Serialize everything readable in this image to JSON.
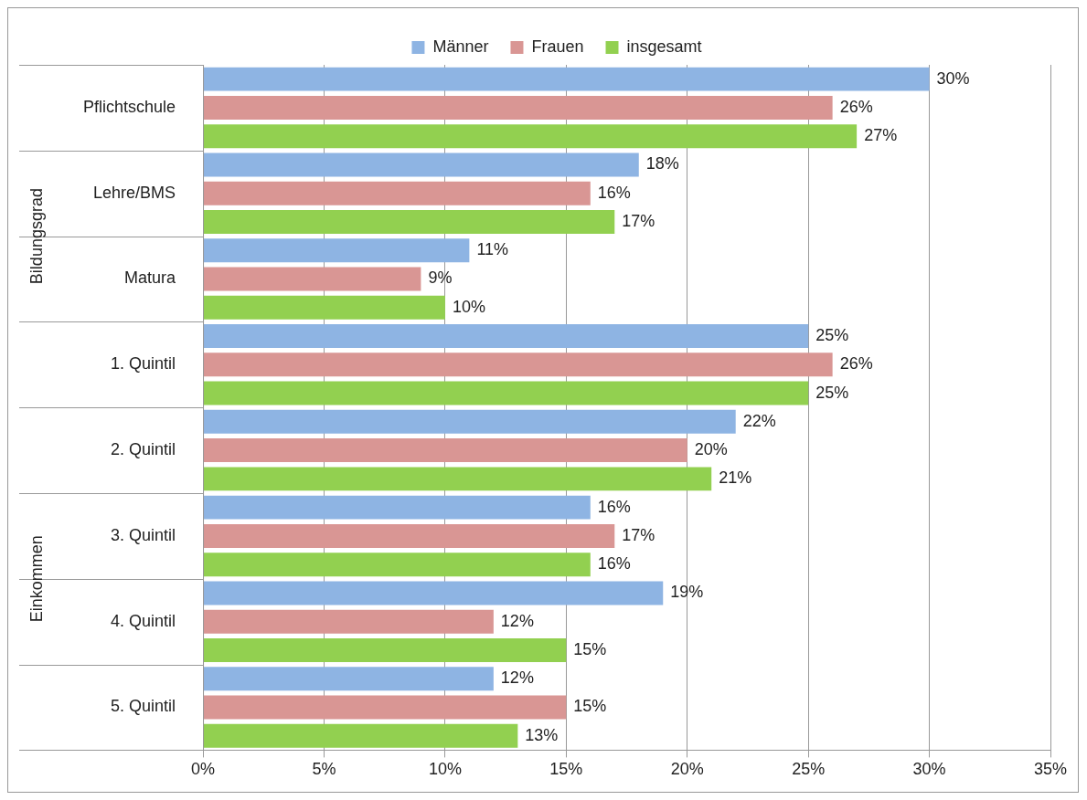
{
  "chart_data": {
    "type": "bar",
    "orientation": "horizontal",
    "categories": [
      "Pflichtschule",
      "Lehre/BMS",
      "Matura",
      "1. Quintil",
      "2. Quintil",
      "3. Quintil",
      "4. Quintil",
      "5. Quintil"
    ],
    "series": [
      {
        "name": "Männer",
        "color": "#8eb4e3",
        "values": [
          30,
          18,
          11,
          25,
          22,
          16,
          19,
          12
        ],
        "value_labels": [
          "30%",
          "18%",
          "11%",
          "25%",
          "22%",
          "16%",
          "19%",
          "12%"
        ]
      },
      {
        "name": "Frauen",
        "color": "#d99694",
        "values": [
          26,
          16,
          9,
          26,
          20,
          17,
          12,
          15
        ],
        "value_labels": [
          "26%",
          "16%",
          "9%",
          "26%",
          "20%",
          "17%",
          "12%",
          "15%"
        ]
      },
      {
        "name": "insgesamt",
        "color": "#92d050",
        "values": [
          27,
          17,
          10,
          25,
          21,
          16,
          15,
          13
        ],
        "value_labels": [
          "27%",
          "17%",
          "10%",
          "25%",
          "21%",
          "16%",
          "15%",
          "13%"
        ]
      }
    ],
    "xlim": [
      0,
      35
    ],
    "xticks": [
      {
        "value": 0,
        "label": "0%"
      },
      {
        "value": 5,
        "label": "5%"
      },
      {
        "value": 10,
        "label": "10%"
      },
      {
        "value": 15,
        "label": "15%"
      },
      {
        "value": 20,
        "label": "20%"
      },
      {
        "value": 25,
        "label": "25%"
      },
      {
        "value": 30,
        "label": "30%"
      },
      {
        "value": 35,
        "label": "35%"
      }
    ],
    "annotations": [
      "Bildungsgrad",
      "Einkommen"
    ],
    "grid": "x",
    "legend": "top"
  }
}
